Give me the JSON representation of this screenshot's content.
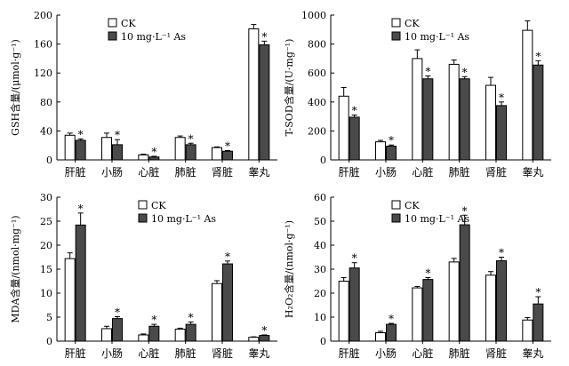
{
  "chart_data": [
    {
      "type": "bar",
      "title": "",
      "xlabel": "",
      "ylabel": "GSH含量/(μmol·g⁻¹)",
      "ylim": [
        0,
        200
      ],
      "yticks": [
        0,
        40,
        80,
        120,
        160,
        200
      ],
      "categories": [
        "肝脏",
        "小肠",
        "心脏",
        "肺脏",
        "肾脏",
        "睾丸"
      ],
      "series": [
        {
          "name": "CK",
          "color": "#ffffff",
          "values": [
            34,
            31,
            7,
            31,
            17,
            181
          ],
          "errors": [
            3,
            6,
            1,
            2,
            1,
            6
          ]
        },
        {
          "name": "10 mg·L⁻¹ As",
          "color": "#4a4a4a",
          "values": [
            27,
            21,
            4,
            21,
            12,
            159
          ],
          "errors": [
            2,
            7,
            1,
            2,
            1,
            5
          ]
        }
      ],
      "significance": [
        "*",
        "*",
        "*",
        "*",
        "*",
        "*"
      ],
      "legend": "top-left"
    },
    {
      "type": "bar",
      "title": "",
      "xlabel": "",
      "ylabel": "T-SOD含量/(U·mg⁻¹)",
      "ylim": [
        0,
        1000
      ],
      "yticks": [
        0,
        200,
        400,
        600,
        800,
        1000
      ],
      "categories": [
        "肝脏",
        "小肠",
        "心脏",
        "肺脏",
        "肾脏",
        "睾丸"
      ],
      "series": [
        {
          "name": "CK",
          "color": "#ffffff",
          "values": [
            440,
            125,
            700,
            660,
            515,
            895
          ],
          "errors": [
            60,
            10,
            60,
            30,
            55,
            65
          ]
        },
        {
          "name": "10 mg·L⁻¹ As",
          "color": "#4a4a4a",
          "values": [
            295,
            95,
            560,
            560,
            375,
            655
          ],
          "errors": [
            15,
            8,
            20,
            15,
            25,
            30
          ]
        }
      ],
      "significance": [
        "*",
        "*",
        "*",
        "*",
        "*",
        "*"
      ],
      "legend": "top-left"
    },
    {
      "type": "bar",
      "title": "",
      "xlabel": "",
      "ylabel": "MDA含量/(nmol·mg⁻¹)",
      "ylim": [
        0,
        30
      ],
      "yticks": [
        0,
        5,
        10,
        15,
        20,
        25,
        30
      ],
      "categories": [
        "肝脏",
        "小肠",
        "心脏",
        "肺脏",
        "肾脏",
        "睾丸"
      ],
      "series": [
        {
          "name": "CK",
          "color": "#ffffff",
          "values": [
            17.2,
            2.6,
            1.3,
            2.5,
            12.0,
            0.8
          ],
          "errors": [
            1.2,
            0.5,
            0.2,
            0.2,
            0.6,
            0.1
          ]
        },
        {
          "name": "10 mg·L⁻¹ As",
          "color": "#4a4a4a",
          "values": [
            24.2,
            4.7,
            3.1,
            3.5,
            16.1,
            1.2
          ],
          "errors": [
            2.5,
            0.4,
            0.4,
            0.5,
            0.6,
            0.1
          ]
        }
      ],
      "significance": [
        "*",
        "*",
        "*",
        "*",
        "*",
        "*"
      ],
      "legend": "top-right"
    },
    {
      "type": "bar",
      "title": "",
      "xlabel": "",
      "ylabel": "H₂O₂含量/(nmol·g⁻¹)",
      "ylim": [
        0,
        60
      ],
      "yticks": [
        0,
        10,
        20,
        30,
        40,
        50,
        60
      ],
      "categories": [
        "肝脏",
        "小肠",
        "心脏",
        "肺脏",
        "肾脏",
        "睾丸"
      ],
      "series": [
        {
          "name": "CK",
          "color": "#ffffff",
          "values": [
            25,
            3.5,
            22.2,
            33,
            27.5,
            8.8
          ],
          "errors": [
            1.5,
            0.6,
            0.6,
            1.5,
            1.5,
            1.0
          ]
        },
        {
          "name": "10 mg·L⁻¹ As",
          "color": "#4a4a4a",
          "values": [
            30.5,
            7,
            25.7,
            48.5,
            33.5,
            15.5
          ],
          "errors": [
            2.2,
            0.4,
            0.8,
            4.0,
            1.5,
            3.0
          ]
        }
      ],
      "significance": [
        "*",
        "*",
        "*",
        "*",
        "*",
        "*"
      ],
      "legend": "top-left"
    }
  ]
}
